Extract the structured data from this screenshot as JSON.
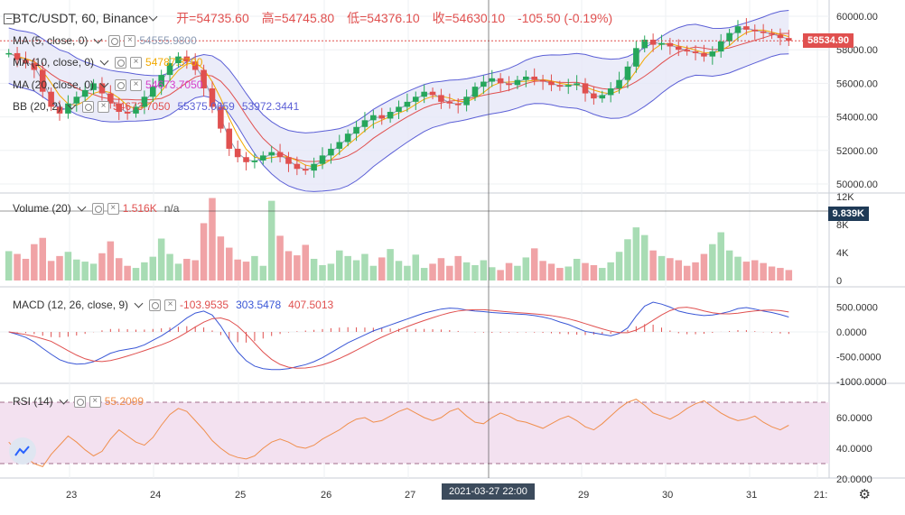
{
  "symbol": "BTC/USDT, 60, Binance",
  "ohlc": {
    "open": "开=54735.60",
    "high": "高=54745.80",
    "low": "低=54376.10",
    "close": "收=54630.10",
    "change": "-105.50 (-0.19%)"
  },
  "indicators": [
    {
      "name": "MA (5, close, 0)",
      "value": "54555.9800",
      "color": "#8b9bb4"
    },
    {
      "name": "MA (10, close, 0)",
      "value": "54787.3700",
      "color": "#f2a900"
    },
    {
      "name": "MA (20, close, 0)",
      "value": "54673.7050",
      "color": "#d63fc9"
    },
    {
      "name": "BB (20, 2)",
      "value": "54673.7050",
      "value2": "55375.0659",
      "value3": "53972.3441"
    }
  ],
  "volume_legend": {
    "name": "Volume (20)",
    "value": "1.516K",
    "extra": "n/a"
  },
  "macd_legend": {
    "name": "MACD (12, 26, close, 9)",
    "v1": "-103.9535",
    "v2": "303.5478",
    "v3": "407.5013"
  },
  "rsi_legend": {
    "name": "RSI (14)",
    "value": "55.2099"
  },
  "price_label": "58534.90",
  "volume_label": "9.839K",
  "crosshair_label": "2021-03-27  22:00",
  "price_axis": [
    "60000.00",
    "58000.00",
    "56000.00",
    "54000.00",
    "52000.00",
    "50000.00"
  ],
  "volume_axis": [
    "12K",
    "8K",
    "4K",
    "0"
  ],
  "macd_axis": [
    "500.0000",
    "0.0000",
    "-500.0000",
    "-1000.0000"
  ],
  "rsi_axis": [
    "60.0000",
    "40.0000",
    "20.0000"
  ],
  "time_axis": [
    "23",
    "24",
    "25",
    "26",
    "27",
    "29",
    "30",
    "31",
    "21:"
  ],
  "colors": {
    "up": "#26a65b",
    "down": "#e0504f",
    "bb": "#5b5fd6",
    "bb_fill": "#e6e7f7",
    "ma5": "#8b9bb4",
    "ma10": "#f2a900",
    "ma20": "#e0504f",
    "rsi_fill": "#f3e1f0",
    "rsi": "#f08f4d"
  },
  "chart_data": {
    "type": "candlestick",
    "price_series": [
      57800,
      57400,
      57200,
      56800,
      55500,
      54600,
      54200,
      54800,
      55200,
      55600,
      56000,
      55400,
      54800,
      54300,
      54200,
      54600,
      55200,
      55800,
      56500,
      57200,
      57600,
      57300,
      56800,
      55700,
      54600,
      53300,
      52100,
      51600,
      51300,
      51400,
      51700,
      51900,
      51600,
      51200,
      50900,
      50800,
      51200,
      51700,
      52100,
      52500,
      53000,
      53400,
      53800,
      54100,
      53900,
      54300,
      54600,
      54900,
      55200,
      55500,
      55300,
      54900,
      54800,
      54700,
      55200,
      55800,
      56100,
      56300,
      56000,
      55900,
      56200,
      56400,
      56200,
      56100,
      55900,
      55800,
      55900,
      56000,
      55400,
      55100,
      55300,
      55700,
      56200,
      57000,
      58100,
      58600,
      58300,
      58400,
      58200,
      58000,
      57900,
      57800,
      57600,
      57900,
      58500,
      59000,
      59400,
      59200,
      59100,
      59000,
      58900,
      58700,
      58534.9
    ],
    "volume_series": [
      4.2,
      3.8,
      3.1,
      5.2,
      6.1,
      2.8,
      3.5,
      4.1,
      3.0,
      2.7,
      2.4,
      3.9,
      5.6,
      3.2,
      2.1,
      1.8,
      2.6,
      3.4,
      6.0,
      3.8,
      2.4,
      3.1,
      2.9,
      8.2,
      11.8,
      6.3,
      4.7,
      3.0,
      2.7,
      3.5,
      2.1,
      11.4,
      6.4,
      4.2,
      3.6,
      5.1,
      3.1,
      2.2,
      2.4,
      4.3,
      3.5,
      2.9,
      3.8,
      2.1,
      3.3,
      4.5,
      2.8,
      2.1,
      3.7,
      1.8,
      2.4,
      3.2,
      2.1,
      3.5,
      2.6,
      2.2,
      2.9,
      1.9,
      1.5,
      2.5,
      2.1,
      3.3,
      4.6,
      2.8,
      2.4,
      1.8,
      2.0,
      3.1,
      2.5,
      2.2,
      1.8,
      2.6,
      4.1,
      5.9,
      7.6,
      6.5,
      4.3,
      3.5,
      3.2,
      2.9,
      2.1,
      2.6,
      3.8,
      5.2,
      6.9,
      4.3,
      3.4,
      2.7,
      2.9,
      2.5,
      2.0,
      1.8,
      1.5
    ],
    "macd_series": [
      0,
      -50,
      -110,
      -200,
      -330,
      -450,
      -560,
      -620,
      -650,
      -640,
      -600,
      -520,
      -430,
      -380,
      -350,
      -320,
      -260,
      -170,
      -80,
      30,
      150,
      280,
      380,
      420,
      340,
      120,
      -150,
      -400,
      -580,
      -690,
      -740,
      -760,
      -760,
      -740,
      -700,
      -660,
      -600,
      -520,
      -420,
      -320,
      -220,
      -140,
      -60,
      20,
      80,
      140,
      200,
      260,
      320,
      380,
      420,
      460,
      480,
      470,
      440,
      420,
      410,
      390,
      380,
      370,
      360,
      350,
      330,
      300,
      260,
      200,
      150,
      80,
      10,
      -20,
      -50,
      -80,
      -30,
      80,
      320,
      520,
      600,
      560,
      500,
      420,
      380,
      350,
      330,
      340,
      370,
      410,
      470,
      490,
      460,
      420,
      390,
      350,
      300
    ],
    "rsi_series": [
      44,
      38,
      34,
      30,
      28,
      36,
      42,
      48,
      44,
      39,
      35,
      38,
      46,
      52,
      48,
      44,
      42,
      47,
      55,
      62,
      66,
      64,
      58,
      52,
      45,
      40,
      36,
      34,
      33,
      35,
      40,
      44,
      46,
      44,
      41,
      40,
      42,
      46,
      49,
      52,
      56,
      59,
      60,
      57,
      58,
      61,
      64,
      66,
      63,
      60,
      58,
      60,
      64,
      66,
      61,
      57,
      56,
      60,
      63,
      61,
      58,
      57,
      55,
      53,
      56,
      59,
      61,
      58,
      54,
      52,
      56,
      61,
      66,
      70,
      72,
      68,
      63,
      61,
      59,
      62,
      66,
      69,
      71,
      67,
      63,
      60,
      58,
      59,
      61,
      57,
      54,
      52,
      55
    ]
  }
}
